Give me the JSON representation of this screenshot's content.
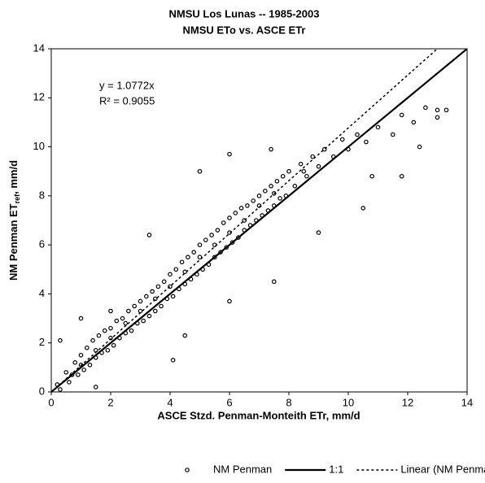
{
  "chart_data": {
    "type": "scatter",
    "title": "NMSU Los Lunas -- 1985-2003",
    "subtitle": "NMSU ETo vs. ASCE ETr",
    "x_label": "ASCE Stzd. Penman-Monteith ETr, mm/d",
    "y_label": {
      "main": "NM Penman ET",
      "sub": "ref",
      "tail": ", mm/d"
    },
    "annotations": [
      "y = 1.0772x",
      "R² = 0.9055"
    ],
    "xlim": [
      0,
      14
    ],
    "ylim": [
      0,
      14
    ],
    "xticks": [
      0,
      2,
      4,
      6,
      8,
      10,
      12,
      14
    ],
    "yticks": [
      0,
      2,
      4,
      6,
      8,
      10,
      12,
      14
    ],
    "grid": false,
    "legend": "bottom",
    "series": [
      {
        "name": "NM Penman",
        "type": "scatter",
        "color": "#000000",
        "x": [
          0.2,
          0.3,
          0.5,
          0.6,
          0.8,
          0.9,
          1.0,
          1.1,
          1.2,
          1.3,
          1.4,
          1.5,
          1.6,
          1.7,
          1.8,
          1.9,
          2.0,
          2.1,
          2.2,
          2.3,
          2.4,
          2.5,
          2.6,
          2.7,
          2.8,
          2.9,
          3.0,
          3.1,
          3.2,
          3.3,
          3.4,
          3.5,
          3.6,
          3.7,
          3.8,
          3.9,
          4.0,
          4.1,
          4.2,
          4.3,
          4.4,
          4.5,
          4.6,
          4.7,
          4.8,
          4.9,
          5.0,
          5.1,
          5.2,
          5.3,
          5.4,
          5.5,
          5.6,
          5.7,
          5.8,
          5.9,
          6.0,
          6.1,
          6.2,
          6.3,
          6.4,
          6.5,
          6.6,
          6.7,
          6.8,
          6.9,
          7.0,
          7.1,
          7.2,
          7.3,
          7.4,
          7.5,
          7.6,
          7.7,
          7.8,
          7.9,
          8.0,
          8.2,
          8.4,
          8.6,
          8.8,
          9.0,
          9.2,
          9.5,
          9.8,
          10.0,
          10.3,
          10.6,
          11.0,
          11.5,
          11.8,
          12.2,
          12.6,
          13.0,
          13.3,
          13.0,
          0.3,
          1.0,
          2.0,
          3.3,
          4.1,
          4.5,
          6.0,
          7.5,
          9.0,
          10.5,
          11.8,
          10.8,
          5.0,
          6.0,
          7.4,
          12.4,
          1.5,
          0.7,
          1.5,
          2.5,
          3.5,
          4.5,
          5.5,
          6.5,
          7.5,
          8.5,
          3.0,
          4.0,
          5.0,
          6.0,
          7.0,
          2.0,
          1.0
        ],
        "y": [
          0.3,
          0.1,
          0.8,
          0.4,
          1.2,
          0.7,
          1.5,
          0.9,
          1.8,
          1.1,
          2.1,
          1.4,
          2.3,
          1.6,
          2.5,
          1.7,
          2.6,
          1.9,
          2.9,
          2.2,
          3.0,
          2.4,
          3.3,
          2.5,
          3.5,
          2.8,
          3.7,
          2.9,
          3.9,
          3.1,
          4.1,
          3.3,
          4.3,
          3.5,
          4.5,
          3.8,
          4.8,
          3.9,
          5.0,
          4.2,
          5.3,
          4.4,
          5.5,
          4.6,
          5.7,
          4.8,
          6.0,
          5.0,
          6.2,
          5.2,
          6.4,
          5.5,
          6.6,
          5.7,
          6.9,
          5.9,
          7.1,
          6.1,
          7.3,
          6.3,
          7.5,
          6.6,
          7.6,
          6.8,
          7.8,
          7.0,
          8.0,
          7.2,
          8.2,
          7.4,
          8.4,
          7.6,
          8.6,
          7.9,
          8.8,
          8.0,
          9.0,
          8.4,
          9.3,
          8.8,
          9.6,
          9.2,
          9.9,
          9.6,
          10.3,
          9.9,
          10.5,
          10.2,
          10.8,
          10.5,
          11.3,
          11.0,
          11.6,
          11.2,
          11.5,
          11.5,
          2.1,
          3.0,
          3.3,
          6.4,
          1.3,
          2.3,
          3.7,
          4.5,
          6.5,
          7.5,
          8.8,
          8.8,
          9.0,
          9.7,
          9.9,
          10.0,
          0.2,
          0.7,
          1.7,
          2.8,
          3.8,
          4.9,
          6.0,
          7.0,
          8.1,
          9.0,
          3.3,
          4.3,
          5.5,
          6.5,
          7.6,
          2.2,
          1.1
        ]
      },
      {
        "name": "1:1",
        "type": "line",
        "color": "#000000",
        "dash": false,
        "x": [
          0,
          14
        ],
        "y": [
          0,
          14
        ]
      },
      {
        "name": "Linear (NM Penman)",
        "type": "line",
        "color": "#000000",
        "dash": true,
        "x": [
          0,
          13
        ],
        "y": [
          0,
          14.0036
        ]
      }
    ]
  }
}
